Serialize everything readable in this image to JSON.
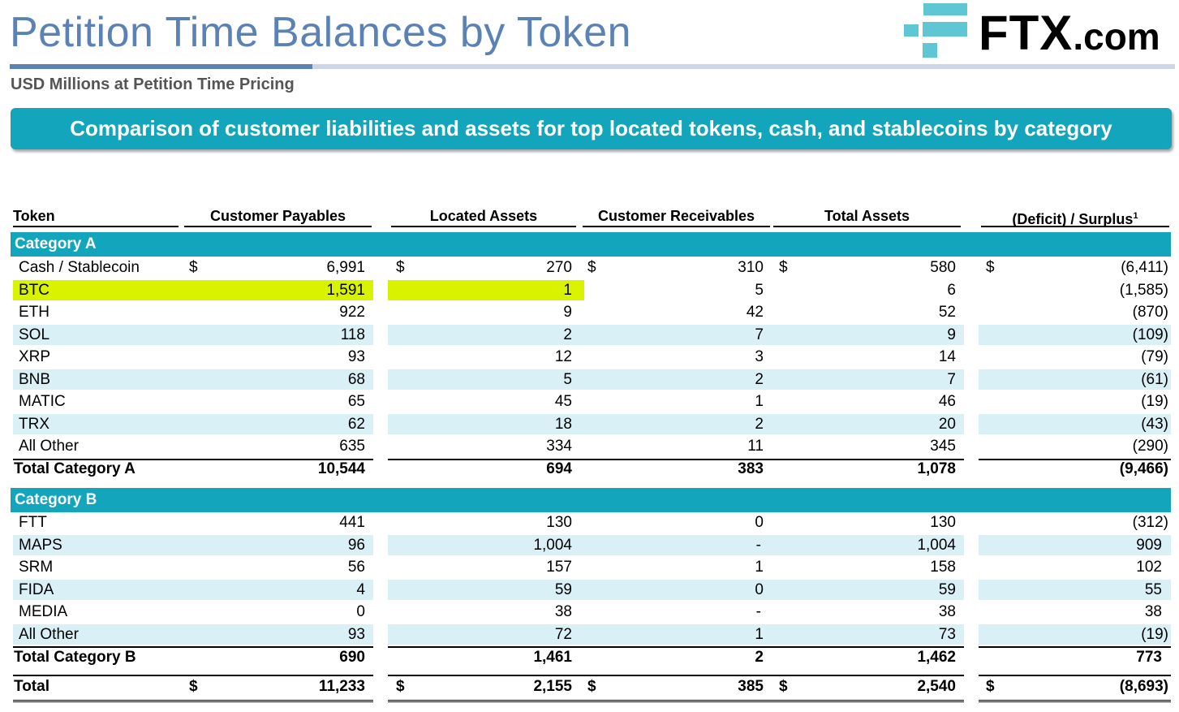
{
  "title": "Petition Time Balances by Token",
  "subtitle": "USD Millions at Petition Time Pricing",
  "logo": {
    "main": "FTX",
    "suffix": ".com"
  },
  "banner": "Comparison of customer liabilities and assets for top located tokens, cash, and stablecoins by category",
  "headers": {
    "token": "Token",
    "payables": "Customer Payables",
    "located": "Located Assets",
    "receivables": "Customer Receivables",
    "total_assets": "Total Assets",
    "deficit": "(Deficit) / Surplus",
    "deficit_footnote": "1"
  },
  "currency_symbol": "$",
  "colors": {
    "accent": "#12a5bb",
    "title": "#5b82b5",
    "highlight": "#d8f200",
    "stripe": "#daf0f7"
  },
  "category_a": {
    "label": "Category A",
    "rows": [
      {
        "token": "Cash / Stablecoin",
        "payables": "6,991",
        "located": "270",
        "receivables": "310",
        "total_assets": "580",
        "deficit": "(6,411)"
      },
      {
        "token": "BTC",
        "payables": "1,591",
        "located": "1",
        "receivables": "5",
        "total_assets": "6",
        "deficit": "(1,585)"
      },
      {
        "token": "ETH",
        "payables": "922",
        "located": "9",
        "receivables": "42",
        "total_assets": "52",
        "deficit": "(870)"
      },
      {
        "token": "SOL",
        "payables": "118",
        "located": "2",
        "receivables": "7",
        "total_assets": "9",
        "deficit": "(109)"
      },
      {
        "token": "XRP",
        "payables": "93",
        "located": "12",
        "receivables": "3",
        "total_assets": "14",
        "deficit": "(79)"
      },
      {
        "token": "BNB",
        "payables": "68",
        "located": "5",
        "receivables": "2",
        "total_assets": "7",
        "deficit": "(61)"
      },
      {
        "token": "MATIC",
        "payables": "65",
        "located": "45",
        "receivables": "1",
        "total_assets": "46",
        "deficit": "(19)"
      },
      {
        "token": "TRX",
        "payables": "62",
        "located": "18",
        "receivables": "2",
        "total_assets": "20",
        "deficit": "(43)"
      },
      {
        "token": "All Other",
        "payables": "635",
        "located": "334",
        "receivables": "11",
        "total_assets": "345",
        "deficit": "(290)"
      }
    ],
    "total": {
      "token": "Total Category A",
      "payables": "10,544",
      "located": "694",
      "receivables": "383",
      "total_assets": "1,078",
      "deficit": "(9,466)"
    }
  },
  "category_b": {
    "label": "Category B",
    "rows": [
      {
        "token": "FTT",
        "payables": "441",
        "located": "130",
        "receivables": "0",
        "total_assets": "130",
        "deficit": "(312)"
      },
      {
        "token": "MAPS",
        "payables": "96",
        "located": "1,004",
        "receivables": "-",
        "total_assets": "1,004",
        "deficit": "909"
      },
      {
        "token": "SRM",
        "payables": "56",
        "located": "157",
        "receivables": "1",
        "total_assets": "158",
        "deficit": "102"
      },
      {
        "token": "FIDA",
        "payables": "4",
        "located": "59",
        "receivables": "0",
        "total_assets": "59",
        "deficit": "55"
      },
      {
        "token": "MEDIA",
        "payables": "0",
        "located": "38",
        "receivables": "-",
        "total_assets": "38",
        "deficit": "38"
      },
      {
        "token": "All Other",
        "payables": "93",
        "located": "72",
        "receivables": "1",
        "total_assets": "73",
        "deficit": "(19)"
      }
    ],
    "total": {
      "token": "Total Category B",
      "payables": "690",
      "located": "1,461",
      "receivables": "2",
      "total_assets": "1,462",
      "deficit": "773"
    }
  },
  "grand_total": {
    "token": "Total",
    "payables": "11,233",
    "located": "2,155",
    "receivables": "385",
    "total_assets": "2,540",
    "deficit": "(8,693)"
  }
}
